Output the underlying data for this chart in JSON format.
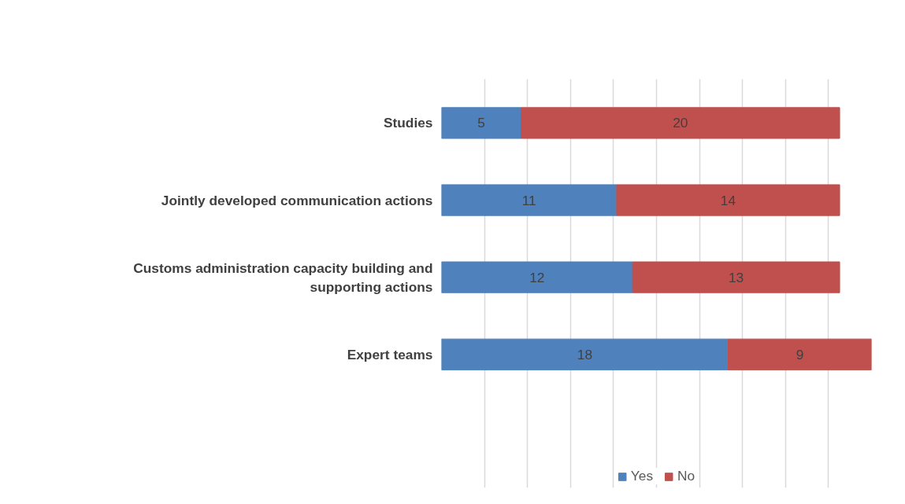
{
  "chart_data": {
    "type": "bar",
    "orientation": "horizontal",
    "stacked": true,
    "categories": [
      "Studies",
      "Jointly developed communication actions",
      "Customs administration capacity building and supporting actions",
      "Expert teams"
    ],
    "series": [
      {
        "name": "Yes",
        "color": "#4f81bd",
        "values": [
          5,
          11,
          12,
          18
        ]
      },
      {
        "name": "No",
        "color": "#c0504d",
        "values": [
          20,
          14,
          13,
          9
        ]
      }
    ],
    "data_labels": true,
    "grid": "x",
    "legend": "bottom",
    "tick_labels": "y"
  }
}
